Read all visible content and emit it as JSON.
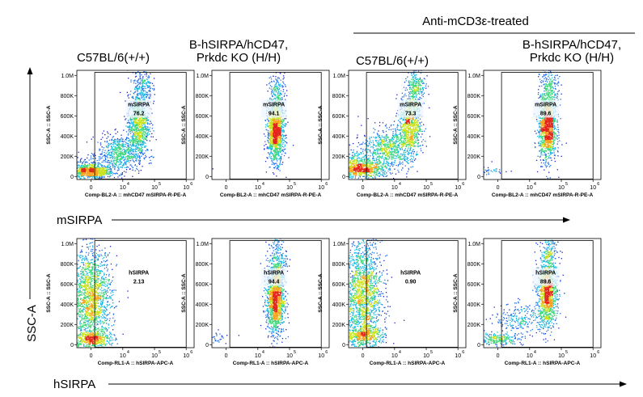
{
  "group_header": "Anti-mCD3ε-treated",
  "columns": [
    {
      "title_lines": [
        "C57BL/6(+/+)"
      ]
    },
    {
      "title_lines": [
        "B-hSIRPA/hCD47,",
        "Prkdc KO (H/H)"
      ]
    },
    {
      "title_lines": [
        "C57BL/6(+/+)"
      ]
    },
    {
      "title_lines": [
        "B-hSIRPA/hCD47,",
        "Prkdc KO (H/H)"
      ]
    }
  ],
  "axis_arrows": {
    "y_label": "SSC-A",
    "row1_label": "mSIRPA",
    "row2_label": "hSIRPA"
  },
  "chart_data": [
    {
      "type": "scatter",
      "row": 1,
      "col": 1,
      "ylabel": "SSC-A :: SSC-A",
      "xlabel": "Comp-BL2-A :: mhCD47 mSIRPA-R-PE-A",
      "y_ticks": [
        "0",
        "200K",
        "400K",
        "600K",
        "800K",
        "1.0M"
      ],
      "x_ticks": [
        "0",
        "10",
        "10",
        "10"
      ],
      "x_exps": [
        "",
        "4",
        "5",
        "6"
      ],
      "gate": {
        "name": "mSIRPA",
        "value": "76.2",
        "x_min": 1300,
        "x_max": 1000000
      },
      "ylim": [
        0,
        1050000
      ],
      "clusters": [
        {
          "x": 0,
          "y": 50000,
          "sx": 0.35,
          "sy": 30000,
          "n": 650
        },
        {
          "x": 400,
          "y": 90000,
          "sx": 0.45,
          "sy": 55000,
          "n": 350
        },
        {
          "x": 8000,
          "y": 230000,
          "sx": 0.35,
          "sy": 90000,
          "n": 650
        },
        {
          "x": 30000,
          "y": 520000,
          "sx": 0.17,
          "sy": 150000,
          "n": 850
        },
        {
          "x": 40000,
          "y": 880000,
          "sx": 0.15,
          "sy": 110000,
          "n": 250
        }
      ]
    },
    {
      "type": "scatter",
      "row": 1,
      "col": 2,
      "ylabel": "SSC-A :: SSC-A",
      "xlabel": "Comp-BL2-A :: mhCD47 mSIRPA-R-PE-A",
      "y_ticks": [
        "0",
        "200K",
        "400K",
        "600K",
        "800K",
        "1.0M"
      ],
      "x_ticks": [
        "0",
        "10",
        "10",
        "10"
      ],
      "x_exps": [
        "",
        "4",
        "5",
        "6"
      ],
      "gate": {
        "name": "mSIRPA",
        "value": "94.1",
        "x_min": 1300,
        "x_max": 1000000
      },
      "ylim": [
        0,
        1050000
      ],
      "clusters": [
        {
          "x": 50,
          "y": 60000,
          "sx": 0.5,
          "sy": 25000,
          "n": 150
        },
        {
          "x": 35000,
          "y": 450000,
          "sx": 0.13,
          "sy": 150000,
          "n": 1300
        },
        {
          "x": 40000,
          "y": 820000,
          "sx": 0.14,
          "sy": 120000,
          "n": 200
        }
      ]
    },
    {
      "type": "scatter",
      "row": 1,
      "col": 3,
      "ylabel": "SSC-A :: SSC-A",
      "xlabel": "Comp-BL2-A :: mhCD47 mSIRPA-R-PE-A",
      "y_ticks": [
        "0",
        "200K",
        "400K",
        "600K",
        "800K",
        "1.0M"
      ],
      "x_ticks": [
        "0",
        "10",
        "10",
        "10"
      ],
      "x_exps": [
        "",
        "4",
        "5",
        "6"
      ],
      "gate": {
        "name": "mSIRPA",
        "value": "73.3",
        "x_min": 1300,
        "x_max": 1000000
      },
      "ylim": [
        0,
        1050000
      ],
      "clusters": [
        {
          "x": 0,
          "y": 70000,
          "sx": 0.4,
          "sy": 40000,
          "n": 600
        },
        {
          "x": 300,
          "y": 150000,
          "sx": 0.5,
          "sy": 70000,
          "n": 450
        },
        {
          "x": 6000,
          "y": 280000,
          "sx": 0.4,
          "sy": 100000,
          "n": 700
        },
        {
          "x": 30000,
          "y": 520000,
          "sx": 0.17,
          "sy": 160000,
          "n": 800
        },
        {
          "x": 45000,
          "y": 900000,
          "sx": 0.15,
          "sy": 100000,
          "n": 250
        }
      ]
    },
    {
      "type": "scatter",
      "row": 1,
      "col": 4,
      "ylabel": "SSC-A :: SSC-A",
      "xlabel": "Comp-BL2-A :: mhCD47 mSIRPA-R-PE-A",
      "y_ticks": [
        "0",
        "200K",
        "400K",
        "600K",
        "800K",
        "1.0M"
      ],
      "x_ticks": [
        "0",
        "10",
        "10",
        "10"
      ],
      "x_exps": [
        "",
        "4",
        "5",
        "6"
      ],
      "gate": {
        "name": "mSIRPA",
        "value": "89.6",
        "x_min": 1300,
        "x_max": 1000000
      },
      "ylim": [
        0,
        1050000
      ],
      "clusters": [
        {
          "x": 100,
          "y": 70000,
          "sx": 0.5,
          "sy": 30000,
          "n": 200
        },
        {
          "x": 35000,
          "y": 480000,
          "sx": 0.14,
          "sy": 160000,
          "n": 1200
        },
        {
          "x": 40000,
          "y": 850000,
          "sx": 0.15,
          "sy": 120000,
          "n": 250
        }
      ]
    },
    {
      "type": "scatter",
      "row": 2,
      "col": 1,
      "ylabel": "SSC-A :: SSC-A",
      "xlabel": "Comp-RL1-A :: hSIRPA-APC-A",
      "y_ticks": [
        "0",
        "200K",
        "400K",
        "600K",
        "800K",
        "1.0M"
      ],
      "x_ticks": [
        "0",
        "10",
        "10",
        "10"
      ],
      "x_exps": [
        "",
        "4",
        "5",
        "6"
      ],
      "gate": {
        "name": "hSIRPA",
        "value": "2.13",
        "x_min": 1300,
        "x_max": 1000000
      },
      "ylim": [
        0,
        1050000
      ],
      "clusters": [
        {
          "x": 0,
          "y": 450000,
          "sx": 0.32,
          "sy": 250000,
          "n": 1700
        },
        {
          "x": 0,
          "y": 60000,
          "sx": 0.3,
          "sy": 40000,
          "n": 400
        }
      ]
    },
    {
      "type": "scatter",
      "row": 2,
      "col": 2,
      "ylabel": "SSC-A :: SSC-A",
      "xlabel": "Comp-RL1-A :: hSIRPA-APC-A",
      "y_ticks": [
        "0",
        "200K",
        "400K",
        "600K",
        "800K",
        "1.0M"
      ],
      "x_ticks": [
        "0",
        "10",
        "10",
        "10"
      ],
      "x_exps": [
        "",
        "4",
        "5",
        "6"
      ],
      "gate": {
        "name": "hSIRPA",
        "value": "94.4",
        "x_min": 1300,
        "x_max": 1000000
      },
      "ylim": [
        0,
        1050000
      ],
      "clusters": [
        {
          "x": 100,
          "y": 70000,
          "sx": 0.5,
          "sy": 30000,
          "n": 150
        },
        {
          "x": 35000,
          "y": 450000,
          "sx": 0.14,
          "sy": 170000,
          "n": 1300
        },
        {
          "x": 40000,
          "y": 850000,
          "sx": 0.15,
          "sy": 110000,
          "n": 200
        }
      ]
    },
    {
      "type": "scatter",
      "row": 2,
      "col": 3,
      "ylabel": "SSC-A :: SSC-A",
      "xlabel": "Comp-RL1-A :: hSIRPA-APC-A",
      "y_ticks": [
        "0",
        "200K",
        "400K",
        "600K",
        "800K",
        "1.0M"
      ],
      "x_ticks": [
        "0",
        "10",
        "10",
        "10"
      ],
      "x_exps": [
        "",
        "4",
        "5",
        "6"
      ],
      "gate": {
        "name": "hSIRPA",
        "value": "0.90",
        "x_min": 1300,
        "x_max": 1000000
      },
      "ylim": [
        0,
        1050000
      ],
      "clusters": [
        {
          "x": 0,
          "y": 500000,
          "sx": 0.3,
          "sy": 280000,
          "n": 1700
        },
        {
          "x": 0,
          "y": 90000,
          "sx": 0.3,
          "sy": 50000,
          "n": 400
        }
      ]
    },
    {
      "type": "scatter",
      "row": 2,
      "col": 4,
      "ylabel": "SSC-A :: SSC-A",
      "xlabel": "Comp-RL1-A :: hSIRPA-APC-A",
      "y_ticks": [
        "0",
        "200K",
        "400K",
        "600K",
        "800K",
        "1.0M"
      ],
      "x_ticks": [
        "0",
        "10",
        "10",
        "10"
      ],
      "x_exps": [
        "",
        "4",
        "5",
        "6"
      ],
      "gate": {
        "name": "hSIRPA",
        "value": "89.6",
        "x_min": 1300,
        "x_max": 1000000
      },
      "ylim": [
        0,
        1050000
      ],
      "clusters": [
        {
          "x": 0,
          "y": 60000,
          "sx": 0.4,
          "sy": 30000,
          "n": 250
        },
        {
          "x": 5000,
          "y": 250000,
          "sx": 0.4,
          "sy": 80000,
          "n": 250
        },
        {
          "x": 35000,
          "y": 500000,
          "sx": 0.15,
          "sy": 160000,
          "n": 1100
        },
        {
          "x": 40000,
          "y": 880000,
          "sx": 0.15,
          "sy": 110000,
          "n": 200
        }
      ]
    }
  ]
}
